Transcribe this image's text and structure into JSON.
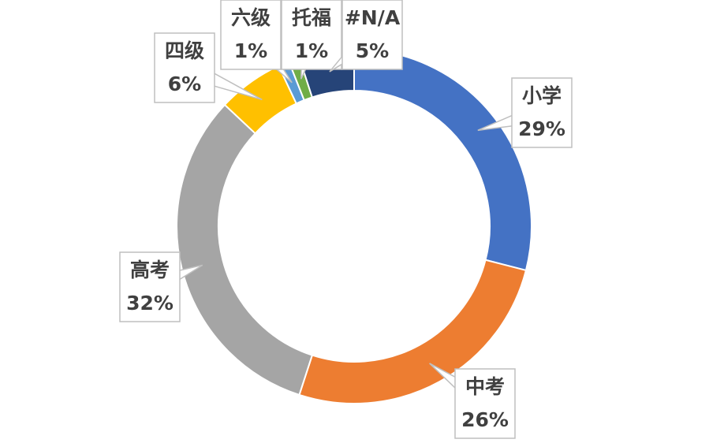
{
  "chart_data": {
    "type": "donut",
    "categories": [
      "小学",
      "中考",
      "高考",
      "四级",
      "六级",
      "托福",
      "#N/A"
    ],
    "values": [
      29,
      26,
      32,
      6,
      1,
      1,
      5
    ],
    "value_labels": [
      "29%",
      "26%",
      "32%",
      "6%",
      "1%",
      "1%",
      "5%"
    ],
    "colors": [
      "#4472c4",
      "#ed7d31",
      "#a5a5a5",
      "#ffc000",
      "#5b9bd5",
      "#70ad47",
      "#264478"
    ]
  }
}
